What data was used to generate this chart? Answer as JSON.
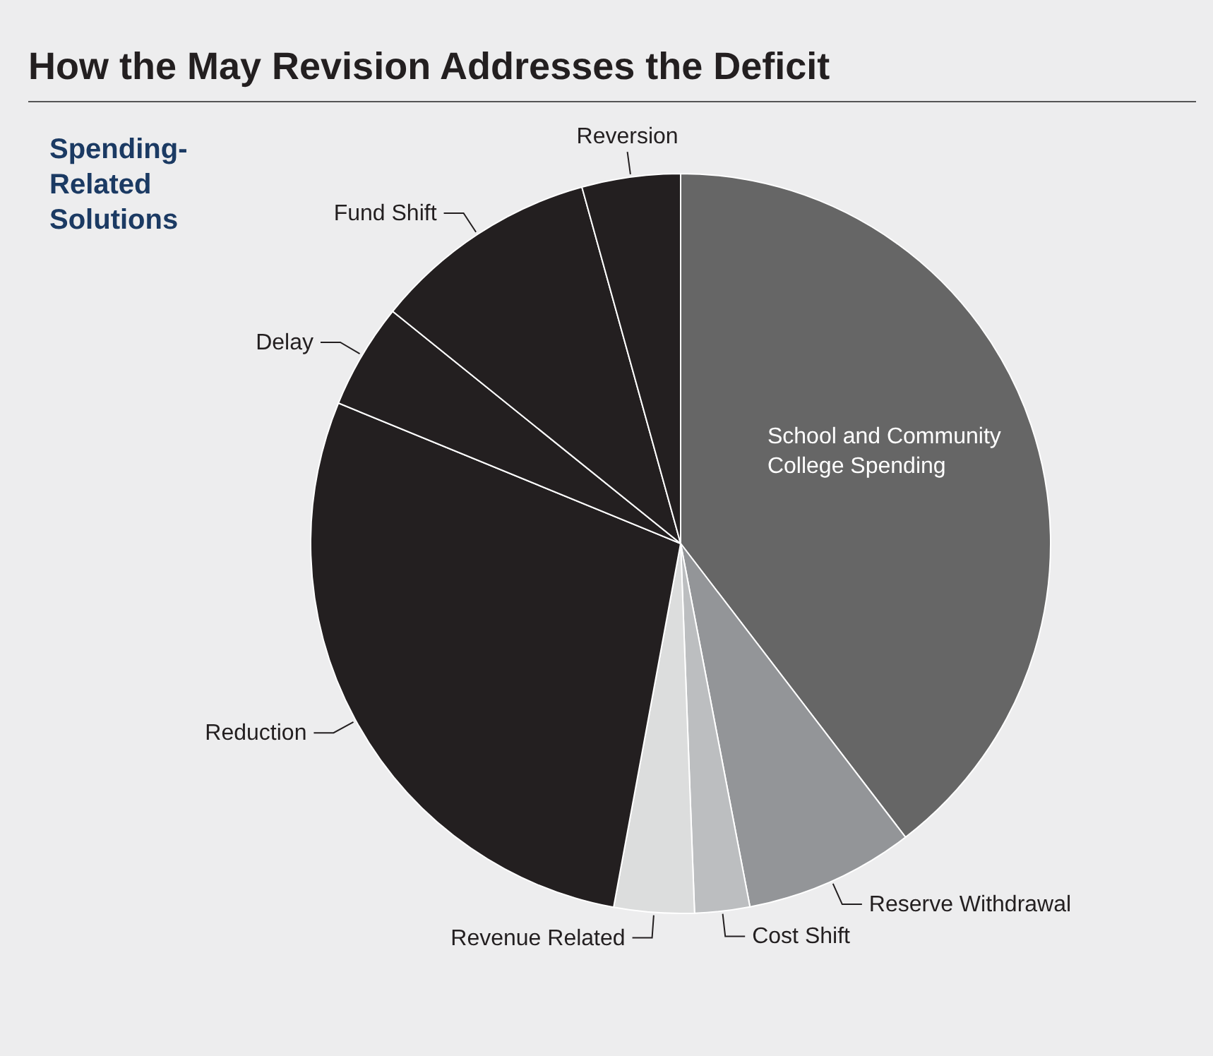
{
  "chart_data": {
    "type": "pie",
    "title": "How the May Revision Addresses the Deficit",
    "categories": [
      "School and Community College Spending",
      "Reserve Withdrawal",
      "Cost Shift",
      "Revenue Related",
      "Reduction",
      "Delay",
      "Fund Shift",
      "Reversion"
    ],
    "values": [
      39.6,
      7.4,
      2.4,
      3.5,
      28.3,
      4.6,
      9.9,
      4.3
    ],
    "colors": [
      "#666666",
      "#939598",
      "#bcbec0",
      "#dcdddd",
      "#231f20",
      "#231f20",
      "#231f20",
      "#231f20"
    ],
    "annotations": [
      "Spending-Related Solutions"
    ]
  }
}
